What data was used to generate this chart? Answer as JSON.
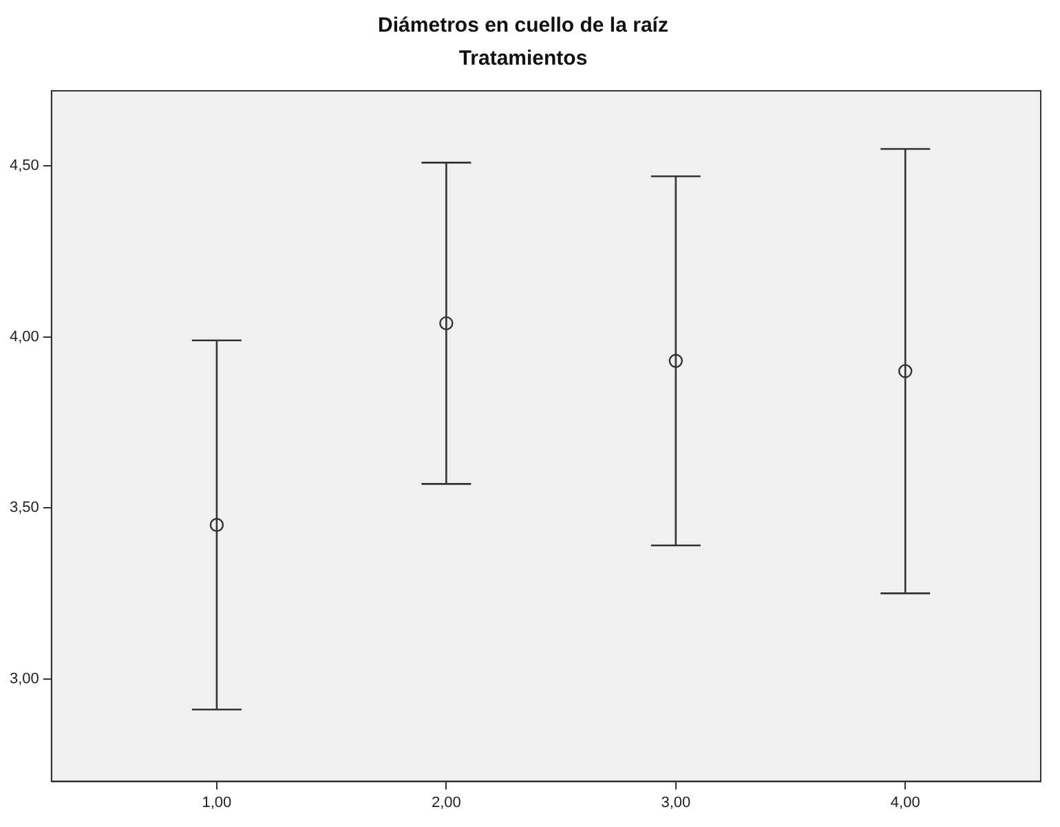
{
  "chart_data": {
    "type": "scatter",
    "title": "Diámetros en cuello de la raíz",
    "subtitle": "Tratamientos",
    "x": [
      1,
      2,
      3,
      4
    ],
    "values": [
      3.45,
      4.04,
      3.93,
      3.9
    ],
    "color": "#333333",
    "marker": "circle",
    "errors": [
      [
        2.91,
        3.99
      ],
      [
        3.57,
        4.51
      ],
      [
        3.39,
        4.47
      ],
      [
        3.25,
        4.55
      ]
    ],
    "xlim": [
      0.28,
      4.59
    ],
    "xticks": [
      {
        "value": 1,
        "label": "1,00"
      },
      {
        "value": 2,
        "label": "2,00"
      },
      {
        "value": 3,
        "label": "3,00"
      },
      {
        "value": 4,
        "label": "4,00"
      }
    ],
    "ylim": [
      2.7,
      4.72
    ],
    "yticks": [
      {
        "value": 3,
        "label": "3,00"
      },
      {
        "value": 3.5,
        "label": "3,50"
      },
      {
        "value": 4,
        "label": "4,00"
      },
      {
        "value": 4.5,
        "label": "4,50"
      }
    ],
    "grid": false,
    "legend": false
  }
}
